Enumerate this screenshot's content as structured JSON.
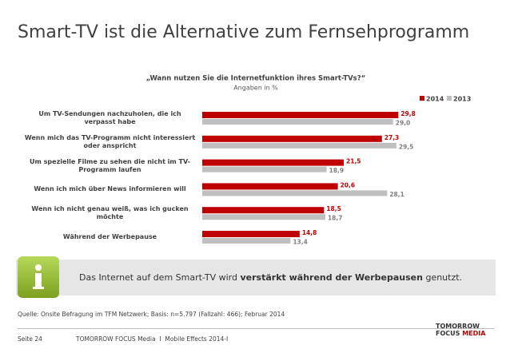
{
  "slide": {
    "title": "Smart-TV ist die Alternative zum Fernsehprogramm",
    "info": [
      "Das Internet auf dem Smart-TV wird ",
      "verstärkt während der Werbepausen",
      " genutzt."
    ],
    "source": "Quelle: Onsite Befragung im TFM Netzwerk; Basis: n=5.797 (Fallzahl: 466); Februar 2014",
    "page": "Seite 24",
    "footer": "TOMORROW FOCUS Media  I  Mobile Effects 2014-I",
    "logo": [
      "TOMORROW",
      "FOCUS",
      "MEDIA"
    ]
  },
  "chart_data": {
    "type": "bar",
    "orientation": "horizontal",
    "title": "„Wann nutzen Sie die Internetfunktion ihres Smart-TVs?“",
    "subtitle": "Angaben in %",
    "categories": [
      "Um TV-Sendungen nachzuholen, die ich verpasst habe",
      "Wenn mich das TV-Programm nicht interessiert oder anspricht",
      "Um spezielle Filme zu sehen die nicht im TV-Programm laufen",
      "Wenn ich mich über News informieren will",
      "Wenn ich nicht genau weiß, was ich gucken möchte",
      "Während der Werbepause"
    ],
    "series": [
      {
        "name": "2014",
        "color": "#c00000",
        "values": [
          29.8,
          27.3,
          21.5,
          20.6,
          18.5,
          14.8
        ],
        "value_labels": [
          "29,8",
          "27,3",
          "21,5",
          "20,6",
          "18,5",
          "14,8"
        ]
      },
      {
        "name": "2013",
        "color": "#bfbfbf",
        "values": [
          29.0,
          29.5,
          18.9,
          28.1,
          18.7,
          13.4
        ],
        "value_labels": [
          "29,0",
          "29,5",
          "18,9",
          "28,1",
          "18,7",
          "13,4"
        ]
      }
    ],
    "xlim": [
      0,
      30
    ],
    "legend": "top-right"
  }
}
